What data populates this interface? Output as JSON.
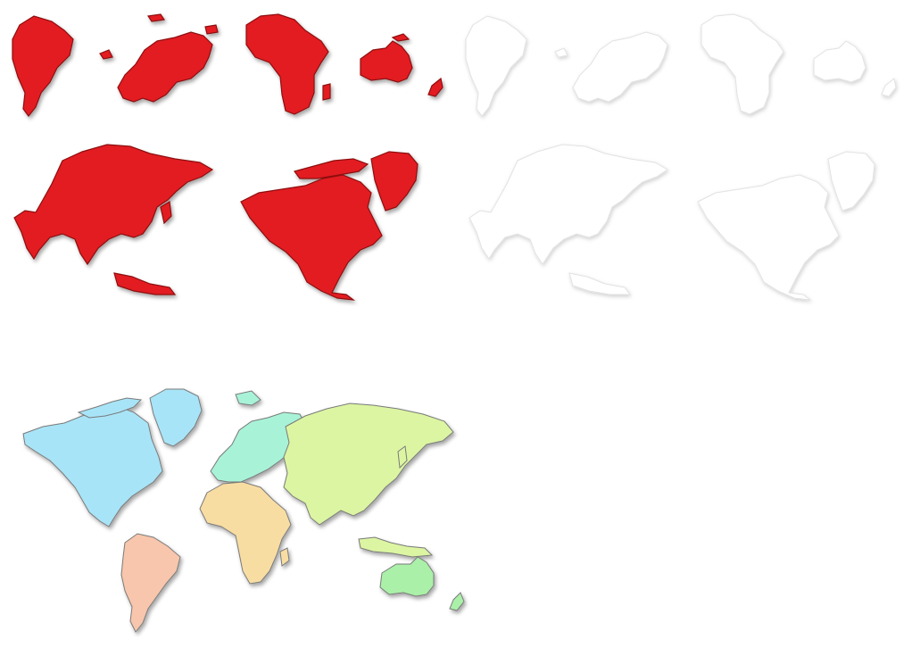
{
  "colors": {
    "red_fill": "#e31e24",
    "white_fill": "#ffffff",
    "world": {
      "north_america": "#a8e4f7",
      "south_america": "#f8c6ac",
      "europe": "#a8f3d8",
      "africa": "#f8dda3",
      "asia": "#dcf5a2",
      "oceania": "#aaf0a8"
    }
  },
  "sets": {
    "red": {
      "continents": [
        "south-america",
        "europe",
        "africa",
        "oceania",
        "asia",
        "north-america"
      ]
    },
    "white": {
      "continents": [
        "south-america",
        "europe",
        "africa",
        "oceania",
        "asia",
        "north-america"
      ]
    },
    "world": {
      "continents": [
        "north-america",
        "south-america",
        "europe",
        "africa",
        "asia",
        "oceania"
      ]
    }
  }
}
